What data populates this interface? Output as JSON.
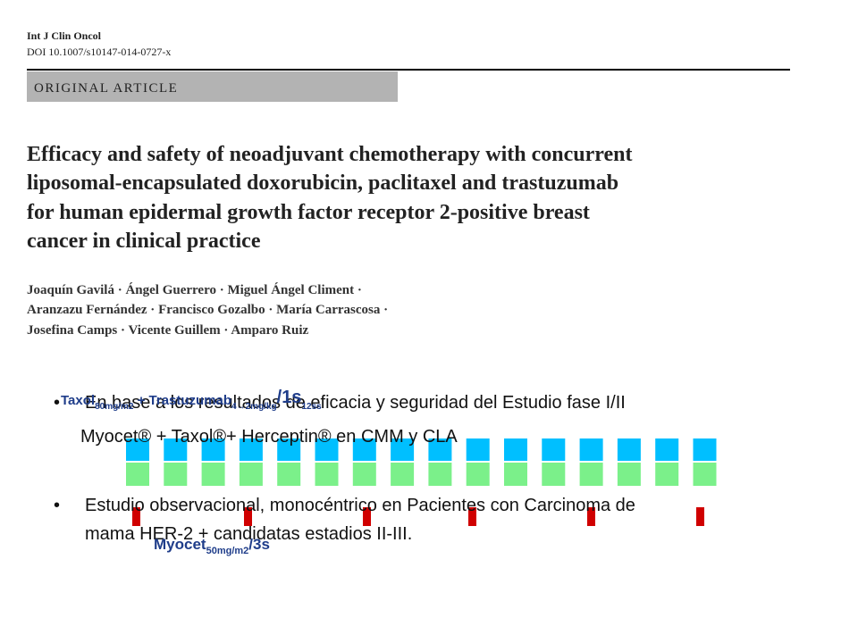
{
  "header": {
    "journal": "Int J Clin Oncol",
    "doi": "DOI 10.1007/s10147-014-0727-x",
    "section": "ORIGINAL ARTICLE"
  },
  "article": {
    "title_lines": [
      "Efficacy and safety of neoadjuvant chemotherapy with concurrent",
      "liposomal-encapsulated doxorubicin, paclitaxel and trastuzumab",
      "for human epidermal growth factor receptor 2-positive breast",
      "cancer in clinical practice"
    ],
    "author_lines": [
      "Joaquín Gavilá · Ángel Guerrero · Miguel Ángel Climent ·",
      "Aranzazu Fernández · Francisco Gozalbo · María Carrascosa ·",
      "Josefina Camps · Vicente Guillem · Amparo Ruiz"
    ]
  },
  "bullets": [
    [
      "En base a los resultados de eficacia y seguridad del Estudio fase I/II",
      "Myocet® + Taxol®+ Herceptin® en CMM y CLA"
    ],
    [
      "Estudio observacional, monocéntrico en Pacientes con Carcinoma de",
      "mama HER-2 + candidatas estadios II-III."
    ]
  ],
  "schedule": {
    "weekly_label": {
      "drug1": "Taxol",
      "dose1": "80mg/m2",
      "drug2": " + Trastuzumab",
      "dose2": "4→2mg/kg",
      "interval": "/1s",
      "count": "12ss"
    },
    "cycle_label": {
      "drug": "Myocet",
      "dose": "50mg/m2",
      "interval": "/3s"
    }
  }
}
